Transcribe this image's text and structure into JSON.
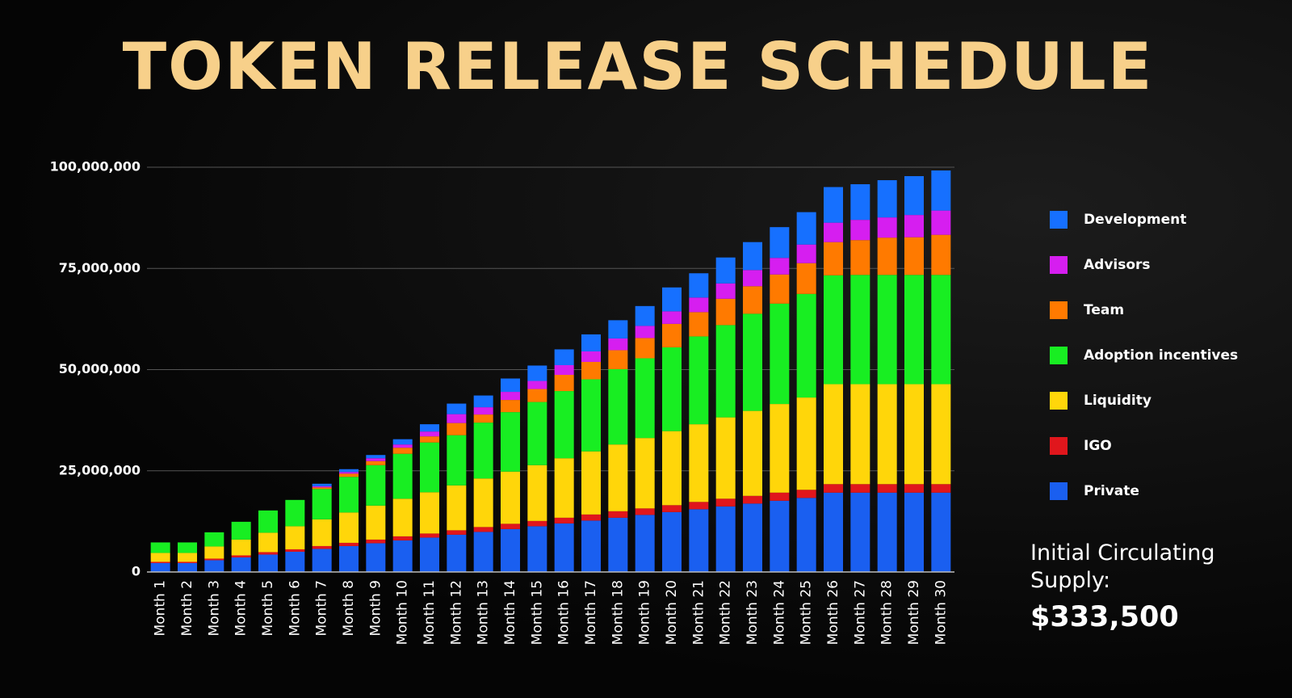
{
  "chart_data": {
    "type": "stacked_bar",
    "title": "TOKEN RELEASE SCHEDULE",
    "categories": [
      "Month 1",
      "Month 2",
      "Month 3",
      "Month 4",
      "Month 5",
      "Month 6",
      "Month 7",
      "Month 8",
      "Month 9",
      "Month 10",
      "Month 11",
      "Month 12",
      "Month 13",
      "Month 14",
      "Month 15",
      "Month 16",
      "Month 17",
      "Month 18",
      "Month 19",
      "Month 20",
      "Month 21",
      "Month 22",
      "Month 23",
      "Month 24",
      "Month 25",
      "Month 26",
      "Month 27",
      "Month 28",
      "Month 29",
      "Month 30"
    ],
    "series": [
      {
        "name": "Private",
        "color": "#1a5ff0",
        "values": [
          2200000,
          2200000,
          2900000,
          3600000,
          4300000,
          5000000,
          5700000,
          6400000,
          7100000,
          7800000,
          8500000,
          9200000,
          9900000,
          10600000,
          11300000,
          12000000,
          12700000,
          13400000,
          14100000,
          14800000,
          15500000,
          16200000,
          16900000,
          17600000,
          18300000,
          19600000,
          19600000,
          19600000,
          19600000,
          19600000
        ]
      },
      {
        "name": "IGO",
        "color": "#e0161c",
        "values": [
          300000,
          300000,
          400000,
          500000,
          600000,
          600000,
          700000,
          800000,
          900000,
          1000000,
          1000000,
          1100000,
          1200000,
          1300000,
          1300000,
          1400000,
          1500000,
          1600000,
          1600000,
          1700000,
          1800000,
          1900000,
          1900000,
          2000000,
          2000000,
          2100000,
          2100000,
          2100000,
          2100000,
          2100000
        ]
      },
      {
        "name": "Liquidity",
        "color": "#ffd60a",
        "values": [
          2200000,
          2200000,
          3000000,
          3900000,
          4800000,
          5700000,
          6600000,
          7500000,
          8400000,
          9300000,
          10200000,
          11100000,
          12000000,
          12900000,
          13800000,
          14700000,
          15600000,
          16500000,
          17400000,
          18300000,
          19200000,
          20100000,
          21000000,
          21900000,
          22800000,
          24700000,
          24700000,
          24700000,
          24700000,
          24700000
        ]
      },
      {
        "name": "Adoption incentives",
        "color": "#18ee22",
        "values": [
          2600000,
          2600000,
          3500000,
          4400000,
          5500000,
          6500000,
          7500000,
          8800000,
          10000000,
          11100000,
          12300000,
          12400000,
          13800000,
          14700000,
          15600000,
          16600000,
          17800000,
          18600000,
          19700000,
          20700000,
          21700000,
          22800000,
          24000000,
          24800000,
          25600000,
          26900000,
          27000000,
          27000000,
          27000000,
          27000000
        ]
      },
      {
        "name": "Team",
        "color": "#ff7a00",
        "values": [
          0,
          0,
          0,
          0,
          0,
          0,
          400000,
          800000,
          1000000,
          1500000,
          1500000,
          3000000,
          2000000,
          3000000,
          3200000,
          4000000,
          4300000,
          4700000,
          5000000,
          5800000,
          6000000,
          6500000,
          6800000,
          7200000,
          7600000,
          8200000,
          8600000,
          9200000,
          9300000,
          9900000
        ]
      },
      {
        "name": "Advisors",
        "color": "#d61ef0",
        "values": [
          0,
          0,
          0,
          0,
          0,
          0,
          300000,
          400000,
          700000,
          800000,
          1200000,
          2200000,
          1800000,
          2000000,
          2000000,
          2400000,
          2600000,
          2900000,
          3000000,
          3100000,
          3600000,
          3800000,
          4000000,
          4100000,
          4600000,
          4800000,
          5000000,
          5000000,
          5500000,
          6000000
        ]
      },
      {
        "name": "Development",
        "color": "#1670ff",
        "values": [
          0,
          0,
          0,
          0,
          0,
          0,
          600000,
          700000,
          800000,
          1300000,
          1800000,
          2600000,
          2900000,
          3300000,
          3800000,
          3900000,
          4200000,
          4500000,
          4900000,
          5900000,
          6000000,
          6400000,
          6900000,
          7600000,
          8000000,
          8800000,
          8800000,
          9200000,
          9600000,
          9900000
        ]
      }
    ],
    "ylim": [
      0,
      100000000
    ],
    "yticks": [
      0,
      {
        "value": 25000000,
        "label": "25,000,000"
      },
      {
        "value": 50000000,
        "label": "50,000,000"
      },
      {
        "value": 75000000,
        "label": "75,000,000"
      },
      {
        "value": 100000000,
        "label": "100,000,000"
      }
    ],
    "grid": true,
    "legend": "right",
    "annotation": {
      "label": "Initial Circulating Supply:",
      "value": "$333,500"
    }
  }
}
